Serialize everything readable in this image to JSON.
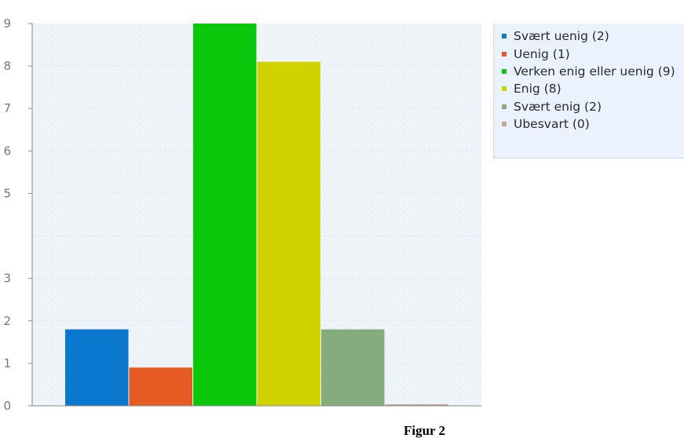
{
  "chart_data": {
    "type": "bar",
    "categories": [
      "Svært uenig (2)",
      "Uenig (1)",
      "Verken enig eller uenig (9)",
      "Enig (8)",
      "Svært enig (2)",
      "Ubesvart (0)"
    ],
    "values": [
      1.8,
      0.9,
      9,
      8.1,
      1.8,
      0
    ],
    "colors": [
      "#0a78cf",
      "#e55b22",
      "#0bc70b",
      "#d1d300",
      "#84ac7c",
      "#c9a98a"
    ],
    "y_ticks": [
      "0",
      "1",
      "2",
      "3",
      "5",
      "6",
      "7",
      "8",
      "9"
    ],
    "ylim": [
      0,
      9
    ],
    "grid": true,
    "legend_position": "top-right",
    "legend": [
      "Svært uenig (2)",
      "Uenig (1)",
      "Verken enig eller uenig (9)",
      "Enig (8)",
      "Svært enig (2)",
      "Ubesvart (0)"
    ]
  },
  "caption": "Figur 2"
}
